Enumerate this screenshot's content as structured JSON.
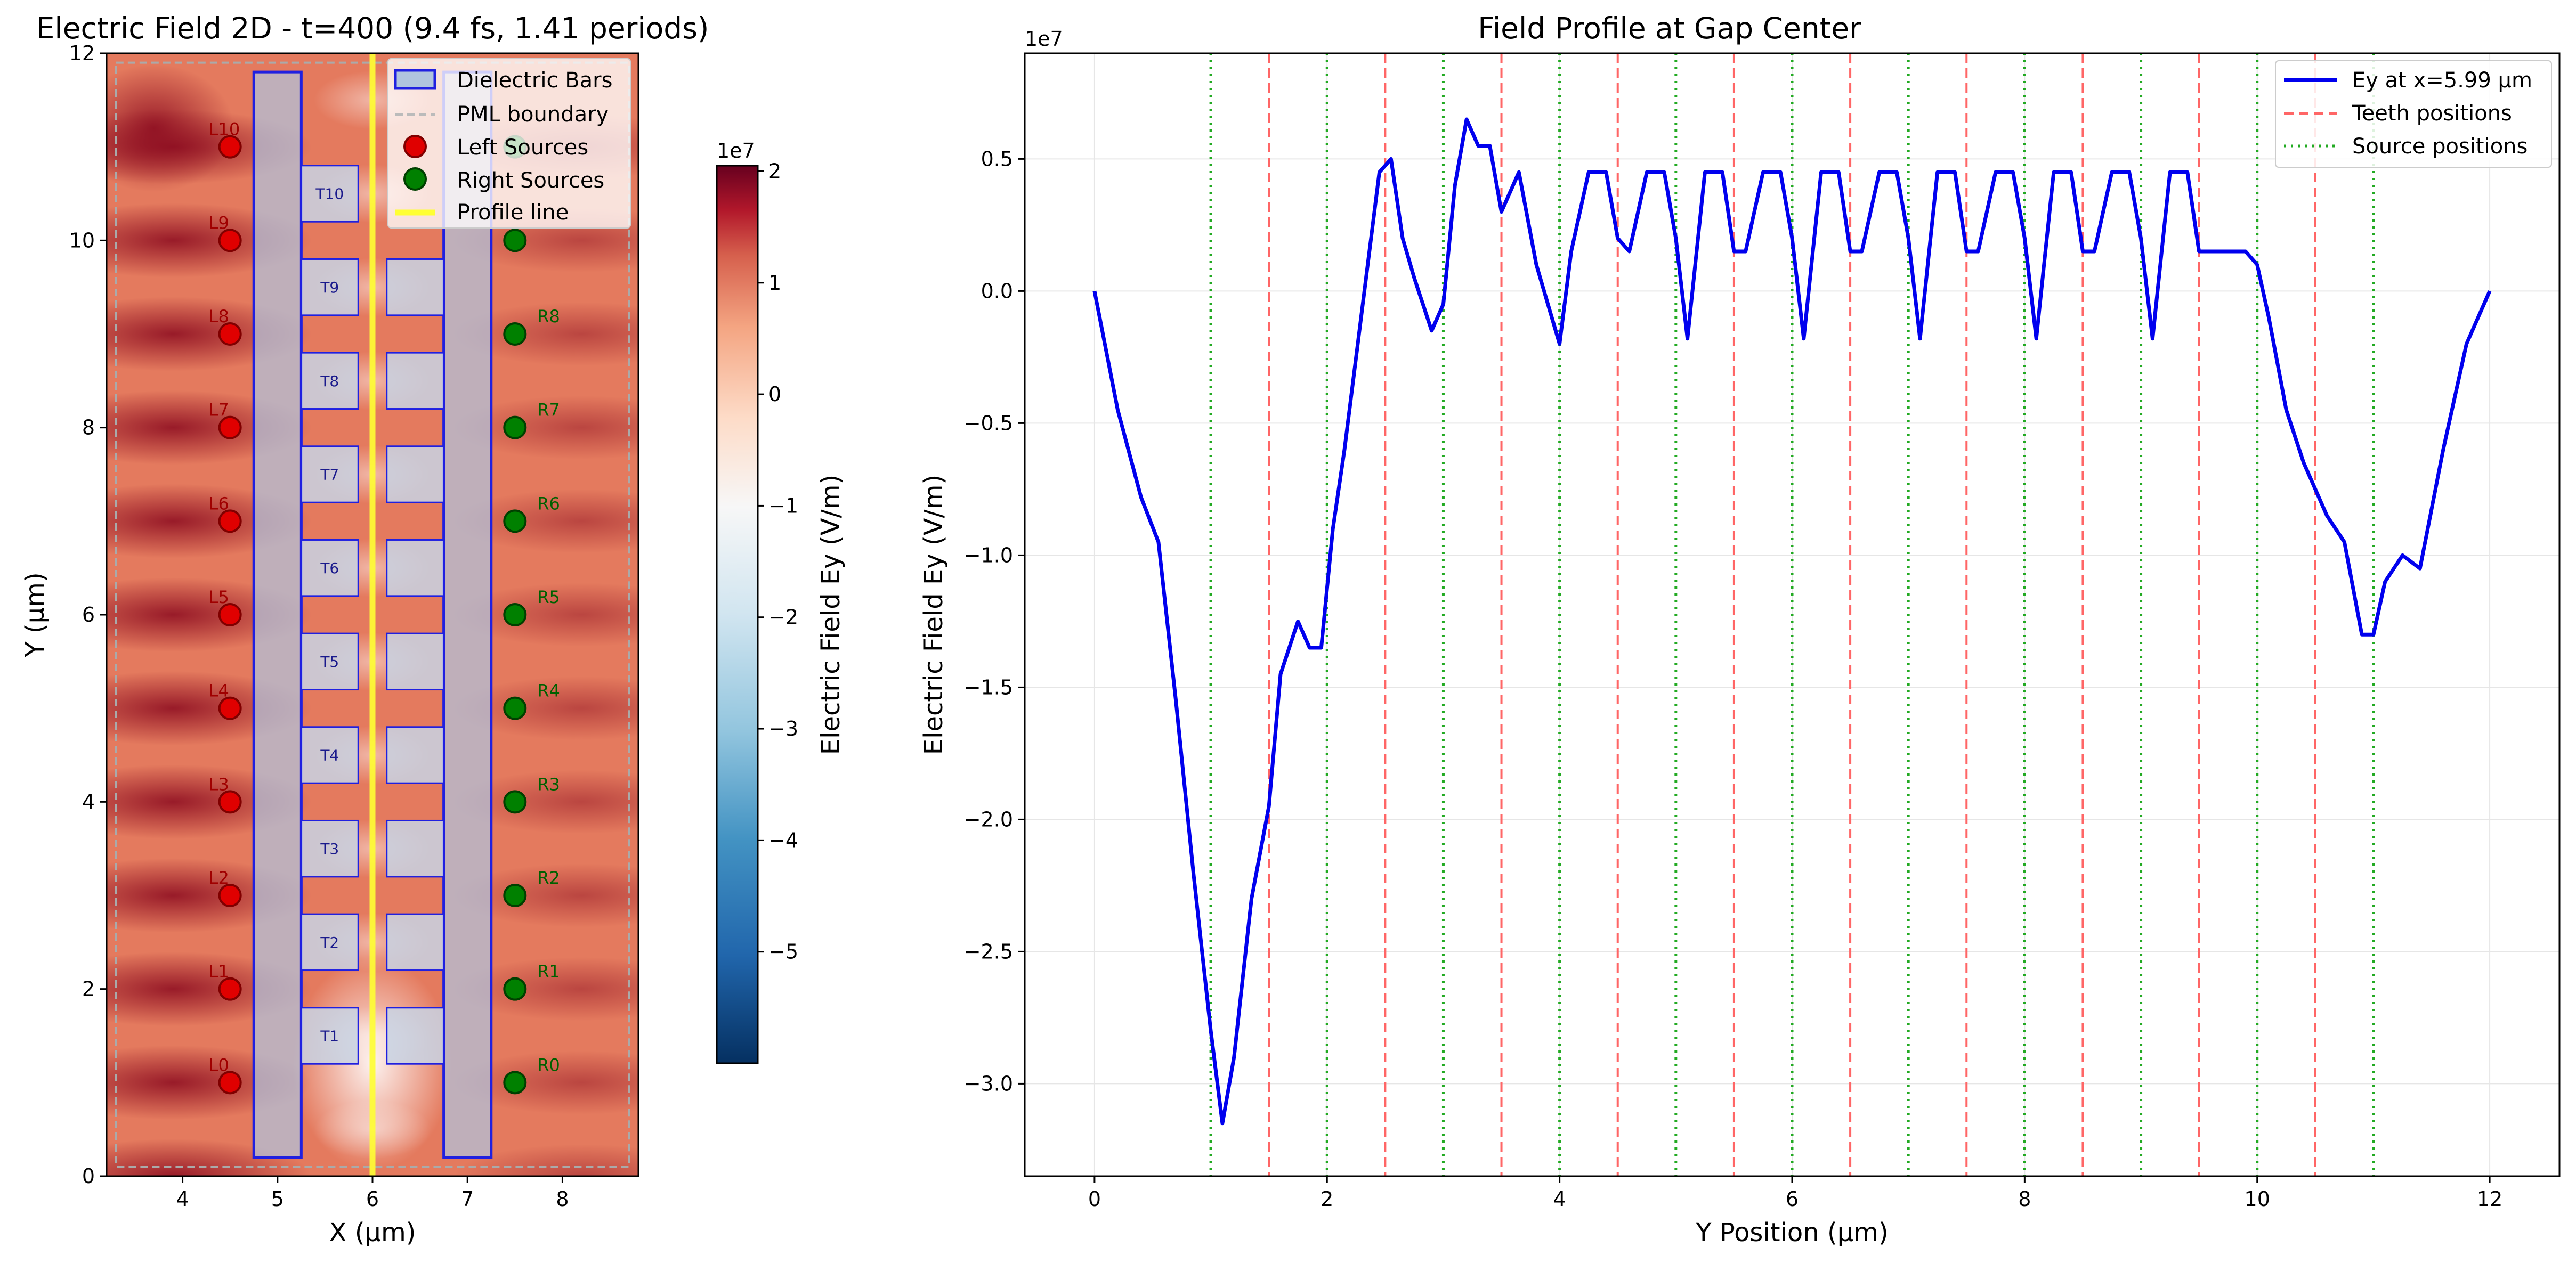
{
  "left_panel": {
    "title": "Electric Field 2D - t=400 (9.4 fs, 1.41 periods)",
    "xlabel": "X (μm)",
    "ylabel": "Y (μm)",
    "xticks": [
      "4",
      "5",
      "6",
      "7",
      "8"
    ],
    "yticks": [
      "0",
      "2",
      "4",
      "6",
      "8",
      "10",
      "12"
    ],
    "xlim": [
      3.2,
      8.8
    ],
    "ylim": [
      0,
      12
    ],
    "legend": [
      "Dielectric Bars",
      "PML boundary",
      "Left Sources",
      "Right Sources",
      "Profile line"
    ],
    "left_source_labels": [
      "L0",
      "L1",
      "L2",
      "L3",
      "L4",
      "L5",
      "L6",
      "L7",
      "L8",
      "L9",
      "L10"
    ],
    "right_source_labels": [
      "R0",
      "R1",
      "R2",
      "R3",
      "R4",
      "R5",
      "R6",
      "R7",
      "R8"
    ],
    "teeth_labels": [
      "T1",
      "T2",
      "T3",
      "T4",
      "T5",
      "T6",
      "T7",
      "T8",
      "T9",
      "T10"
    ],
    "colors": {
      "left_source": "#e00000",
      "right_source": "#008000",
      "bar": "#b0c4de",
      "bar_edge": "#2020e0",
      "profile": "#ffff33"
    }
  },
  "colorbar": {
    "label": "Electric Field Ey (V/m)",
    "exponent": "1e7",
    "ticks": [
      "2",
      "1",
      "0",
      "−1",
      "−2",
      "−3",
      "−4",
      "−5"
    ],
    "range": [
      -6.0,
      2.05
    ]
  },
  "chart_data": {
    "type": "line",
    "title": "Field Profile at Gap Center",
    "xlabel": "Y Position (μm)",
    "ylabel": "Electric Field Ey (V/m)",
    "y_exponent": "1e7",
    "xlim": [
      -0.6,
      12.6
    ],
    "ylim": [
      -3.35,
      0.9
    ],
    "xticks": [
      "0",
      "2",
      "4",
      "6",
      "8",
      "10",
      "12"
    ],
    "yticks": [
      "0.5",
      "0.0",
      "−0.5",
      "−1.0",
      "−1.5",
      "−2.0",
      "−2.5",
      "−3.0"
    ],
    "grid": true,
    "legend_position": "top-right",
    "legend": [
      "Ey at x=5.99 μm",
      "Teeth positions",
      "Source positions"
    ],
    "teeth_positions": [
      1.5,
      2.5,
      3.5,
      4.5,
      5.5,
      6.5,
      7.5,
      8.5,
      9.5,
      10.5
    ],
    "source_positions": [
      1,
      2,
      3,
      4,
      5,
      6,
      7,
      8,
      9,
      10,
      11
    ],
    "series": [
      {
        "name": "Ey at x=5.99 μm",
        "color": "#0000ee",
        "x": [
          0.0,
          0.2,
          0.4,
          0.55,
          0.7,
          0.85,
          1.0,
          1.1,
          1.2,
          1.35,
          1.5,
          1.6,
          1.75,
          1.85,
          1.95,
          2.05,
          2.15,
          2.25,
          2.35,
          2.45,
          2.55,
          2.65,
          2.75,
          2.9,
          3.0,
          3.1,
          3.2,
          3.3,
          3.4,
          3.5,
          3.65,
          3.8,
          4.0,
          4.1,
          4.25,
          4.4,
          4.5,
          4.6,
          4.75,
          4.9,
          5.0,
          5.1,
          5.25,
          5.4,
          5.5,
          5.6,
          5.75,
          5.9,
          6.0,
          6.1,
          6.25,
          6.4,
          6.5,
          6.6,
          6.75,
          6.9,
          7.0,
          7.1,
          7.25,
          7.4,
          7.5,
          7.6,
          7.75,
          7.9,
          8.0,
          8.1,
          8.25,
          8.4,
          8.5,
          8.6,
          8.75,
          8.9,
          9.0,
          9.1,
          9.25,
          9.4,
          9.5,
          9.6,
          9.75,
          9.9,
          10.0,
          10.1,
          10.25,
          10.4,
          10.5,
          10.6,
          10.75,
          10.9,
          11.0,
          11.1,
          11.25,
          11.4,
          11.6,
          11.8,
          11.95,
          12.0
        ],
        "values": [
          0.0,
          -0.45,
          -0.78,
          -0.95,
          -1.55,
          -2.2,
          -2.8,
          -3.15,
          -2.9,
          -2.3,
          -1.95,
          -1.45,
          -1.25,
          -1.35,
          -1.35,
          -0.9,
          -0.6,
          -0.25,
          0.1,
          0.45,
          0.5,
          0.2,
          0.05,
          -0.15,
          -0.05,
          0.4,
          0.65,
          0.55,
          0.55,
          0.3,
          0.45,
          0.1,
          -0.2,
          0.15,
          0.45,
          0.45,
          0.2,
          0.15,
          0.45,
          0.45,
          0.2,
          -0.18,
          0.45,
          0.45,
          0.15,
          0.15,
          0.45,
          0.45,
          0.2,
          -0.18,
          0.45,
          0.45,
          0.15,
          0.15,
          0.45,
          0.45,
          0.2,
          -0.18,
          0.45,
          0.45,
          0.15,
          0.15,
          0.45,
          0.45,
          0.2,
          -0.18,
          0.45,
          0.45,
          0.15,
          0.15,
          0.45,
          0.45,
          0.2,
          -0.18,
          0.45,
          0.45,
          0.15,
          0.15,
          0.15,
          0.15,
          0.1,
          -0.1,
          -0.45,
          -0.65,
          -0.75,
          -0.85,
          -0.95,
          -1.3,
          -1.3,
          -1.1,
          -1.0,
          -1.05,
          -0.6,
          -0.2,
          -0.05,
          0.0
        ]
      }
    ]
  }
}
